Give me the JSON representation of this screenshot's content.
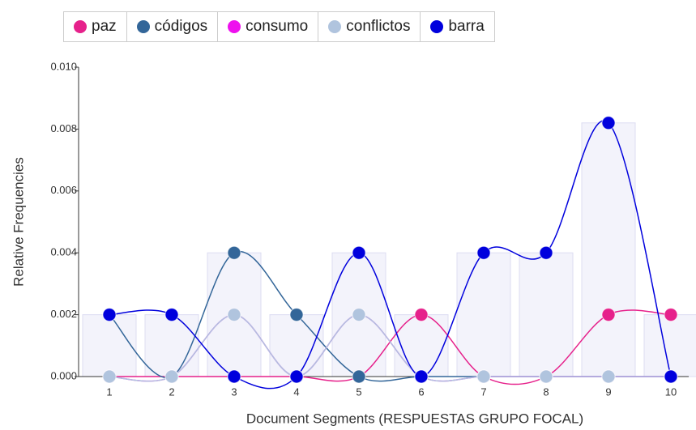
{
  "chart_data": {
    "type": "line",
    "xlabel": "Document Segments (RESPUESTAS GRUPO FOCAL)",
    "ylabel": "Relative Frequencies",
    "categories": [
      1,
      2,
      3,
      4,
      5,
      6,
      7,
      8,
      9,
      10
    ],
    "series": [
      {
        "name": "paz",
        "color": "#e6218b",
        "values": [
          0,
          0,
          0,
          0,
          0,
          0.002,
          0,
          0,
          0.002,
          0.002
        ]
      },
      {
        "name": "códigos",
        "color": "#336699",
        "values": [
          0.002,
          0,
          0.004,
          0.002,
          0,
          0,
          0,
          0,
          0,
          0
        ]
      },
      {
        "name": "consumo",
        "color": "#ee11ee",
        "values": [
          0,
          0,
          0.002,
          0,
          0.002,
          0,
          0,
          0,
          0,
          0
        ]
      },
      {
        "name": "conflictos",
        "color": "#b0c4de",
        "values": [
          0,
          0,
          0.002,
          0,
          0.002,
          0,
          0,
          0,
          0,
          0
        ]
      },
      {
        "name": "barra",
        "color": "#0000dd",
        "values": [
          0.002,
          0.002,
          0,
          0,
          0.004,
          0,
          0.004,
          0.004,
          0.0082,
          0
        ]
      }
    ],
    "ylim": [
      0,
      0.01
    ],
    "yticks": [
      {
        "value": 0,
        "label": "0.000"
      },
      {
        "value": 0.002,
        "label": "0.002"
      },
      {
        "value": 0.004,
        "label": "0.004"
      },
      {
        "value": 0.006,
        "label": "0.006"
      },
      {
        "value": 0.008,
        "label": "0.008"
      },
      {
        "value": 0.01,
        "label": "0.010"
      }
    ]
  }
}
